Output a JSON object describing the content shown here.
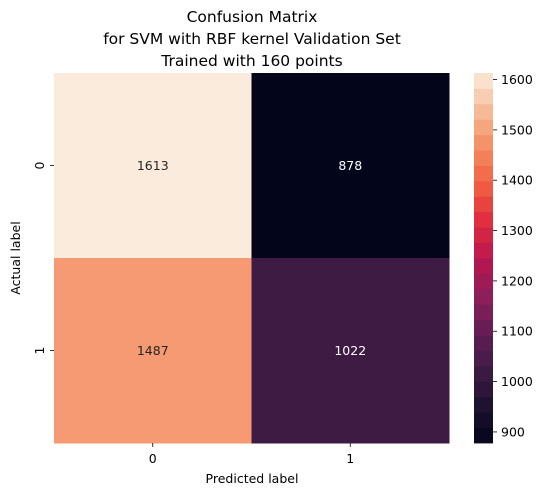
{
  "chart_data": {
    "type": "heatmap",
    "title_lines": [
      "Confusion Matrix",
      "for SVM with RBF kernel Validation Set",
      "Trained with 160 points"
    ],
    "xlabel": "Predicted label",
    "ylabel": "Actual label",
    "x_categories": [
      "0",
      "1"
    ],
    "y_categories": [
      "0",
      "1"
    ],
    "values": [
      [
        1613,
        878
      ],
      [
        1487,
        1022
      ]
    ],
    "colorbar": {
      "min": 878,
      "max": 1613,
      "ticks": [
        900,
        1000,
        1100,
        1200,
        1300,
        1400,
        1500,
        1600
      ],
      "colormap": "rocket"
    },
    "grid": false
  }
}
